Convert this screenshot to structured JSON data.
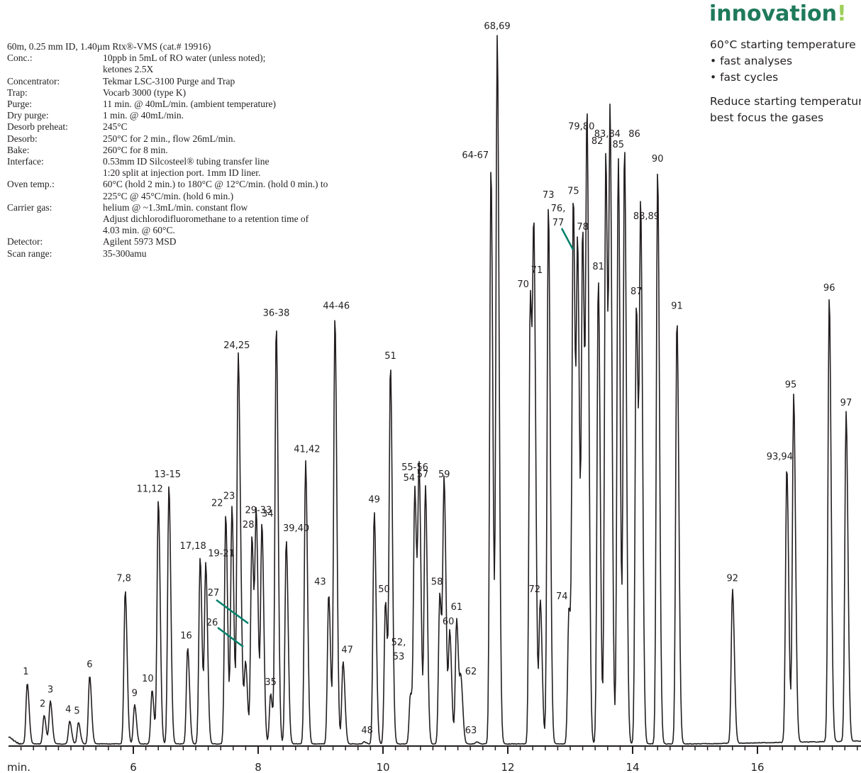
{
  "conditions": [
    {
      "key": "60m, 0.25 mm ID, 1.40µm Rtx®-VMS (cat.# 19916)",
      "value": ""
    },
    {
      "key": "Conc.:",
      "value": "10ppb in 5mL of RO water (unless noted);"
    },
    {
      "key": "",
      "value": "ketones 2.5X"
    },
    {
      "key": "Concentrator:",
      "value": "Tekmar LSC-3100 Purge and Trap"
    },
    {
      "key": "Trap:",
      "value": "Vocarb 3000 (type K)"
    },
    {
      "key": "Purge:",
      "value": "11 min. @ 40mL/min. (ambient temperature)"
    },
    {
      "key": "Dry purge:",
      "value": "1 min. @ 40mL/min."
    },
    {
      "key": "Desorb preheat:",
      "value": "245°C"
    },
    {
      "key": "Desorb:",
      "value": "250°C for 2 min., flow 26mL/min."
    },
    {
      "key": "Bake:",
      "value": "260°C for 8 min."
    },
    {
      "key": "Interface:",
      "value": "0.53mm ID Silcosteel® tubing transfer line"
    },
    {
      "key": "",
      "value": "1:20 split at injection port. 1mm ID liner."
    },
    {
      "key": "Oven temp.:",
      "value": "60°C (hold 2 min.) to 180°C @ 12°C/min. (hold 0 min.) to"
    },
    {
      "key": "",
      "value": "225°C @ 45°C/min. (hold 6 min.)"
    },
    {
      "key": "Carrier gas:",
      "value": "helium @ ~1.3mL/min. constant flow"
    },
    {
      "key": "",
      "value": "Adjust dichlorodifluoromethane to a retention time of"
    },
    {
      "key": "",
      "value": "4.03 min. @ 60°C."
    },
    {
      "key": "Detector:",
      "value": "Agilent 5973 MSD"
    },
    {
      "key": "Scan range:",
      "value": "35-300amu"
    }
  ],
  "innovation": {
    "title": "innovation",
    "bang": "!",
    "lines": [
      "60°C starting temperature",
      "• fast analyses",
      "• fast cycles",
      "",
      "Reduce starting temperature to",
      "best focus the gases"
    ]
  },
  "colors": {
    "trace": "#231f20",
    "accent": "#1e7a5a",
    "bang": "#9ecf5a",
    "pointer": "#00806a"
  },
  "chart_data": {
    "type": "line",
    "xlabel": "min.",
    "x_ticks": [
      6,
      8,
      10,
      12,
      14,
      16
    ],
    "xlim": [
      4.0,
      17.7
    ],
    "ylim": [
      0,
      100
    ],
    "peaks": [
      {
        "label": "1",
        "x": 4.3,
        "y": 8.5
      },
      {
        "label": "2",
        "x": 4.57,
        "y": 4.0
      },
      {
        "label": "3",
        "x": 4.67,
        "y": 6.0
      },
      {
        "label": "4",
        "x": 4.98,
        "y": 3.2
      },
      {
        "label": "5",
        "x": 5.12,
        "y": 3.0
      },
      {
        "label": "6",
        "x": 5.3,
        "y": 9.5
      },
      {
        "label": "7,8",
        "x": 5.87,
        "y": 21.5
      },
      {
        "label": "9",
        "x": 6.02,
        "y": 5.5
      },
      {
        "label": "10",
        "x": 6.3,
        "y": 7.5
      },
      {
        "label": "11,12",
        "x": 6.4,
        "y": 34.0
      },
      {
        "label": "13-15",
        "x": 6.57,
        "y": 36.0
      },
      {
        "label": "16",
        "x": 6.87,
        "y": 13.5
      },
      {
        "label": "17,18",
        "x": 7.07,
        "y": 26.0
      },
      {
        "label": "19-21",
        "x": 7.16,
        "y": 25.0
      },
      {
        "label": "22",
        "x": 7.48,
        "y": 32.0
      },
      {
        "label": "23",
        "x": 7.58,
        "y": 33.0
      },
      {
        "label": "24,25",
        "x": 7.68,
        "y": 54.0
      },
      {
        "label": "26",
        "x": 7.73,
        "y": 9.0
      },
      {
        "label": "27",
        "x": 7.8,
        "y": 11.0
      },
      {
        "label": "28",
        "x": 7.9,
        "y": 29.0
      },
      {
        "label": "29-33",
        "x": 7.97,
        "y": 31.0
      },
      {
        "label": "34",
        "x": 8.06,
        "y": 30.5
      },
      {
        "label": "35",
        "x": 8.2,
        "y": 7.0
      },
      {
        "label": "36-38",
        "x": 8.29,
        "y": 58.5
      },
      {
        "label": "39,40",
        "x": 8.45,
        "y": 28.5
      },
      {
        "label": "41,42",
        "x": 8.76,
        "y": 39.5
      },
      {
        "label": "43",
        "x": 9.13,
        "y": 21.0
      },
      {
        "label": "44-46",
        "x": 9.23,
        "y": 59.5
      },
      {
        "label": "47",
        "x": 9.36,
        "y": 11.5
      },
      {
        "label": "48",
        "x": 9.7,
        "y": 0.3
      },
      {
        "label": "49",
        "x": 9.86,
        "y": 32.5
      },
      {
        "label": "50",
        "x": 10.04,
        "y": 20.0
      },
      {
        "label": "51",
        "x": 10.12,
        "y": 52.5
      },
      {
        "label": "52,53",
        "x": 10.44,
        "y": 7.0
      },
      {
        "label": "54",
        "x": 10.51,
        "y": 35.5
      },
      {
        "label": "55-56",
        "x": 10.58,
        "y": 37.0
      },
      {
        "label": "57",
        "x": 10.68,
        "y": 36.0
      },
      {
        "label": "58",
        "x": 10.91,
        "y": 21.0
      },
      {
        "label": "59",
        "x": 10.98,
        "y": 36.0
      },
      {
        "label": "60",
        "x": 11.07,
        "y": 15.5
      },
      {
        "label": "61",
        "x": 11.18,
        "y": 17.5
      },
      {
        "label": "62",
        "x": 11.25,
        "y": 8.5
      },
      {
        "label": "63",
        "x": 11.5,
        "y": 0.3
      },
      {
        "label": "64-67",
        "x": 11.73,
        "y": 80.5
      },
      {
        "label": "68,69",
        "x": 11.83,
        "y": 98.5
      },
      {
        "label": "70",
        "x": 12.36,
        "y": 62.5
      },
      {
        "label": "71",
        "x": 12.42,
        "y": 64.5
      },
      {
        "label": "72",
        "x": 12.52,
        "y": 20.0
      },
      {
        "label": "73",
        "x": 12.65,
        "y": 75.0
      },
      {
        "label": "74",
        "x": 12.98,
        "y": 19.0
      },
      {
        "label": "75",
        "x": 13.05,
        "y": 75.5
      },
      {
        "label": "76,77",
        "x": 13.12,
        "y": 66.0
      },
      {
        "label": "78",
        "x": 13.2,
        "y": 70.5
      },
      {
        "label": "79,80",
        "x": 13.27,
        "y": 84.5
      },
      {
        "label": "81",
        "x": 13.45,
        "y": 65.0
      },
      {
        "label": "82",
        "x": 13.57,
        "y": 82.5
      },
      {
        "label": "83,84",
        "x": 13.64,
        "y": 83.5
      },
      {
        "label": "85",
        "x": 13.77,
        "y": 82.0
      },
      {
        "label": "86",
        "x": 13.87,
        "y": 83.5
      },
      {
        "label": "87",
        "x": 14.06,
        "y": 61.5
      },
      {
        "label": "88,89",
        "x": 14.13,
        "y": 72.0
      },
      {
        "label": "90",
        "x": 14.4,
        "y": 80.0
      },
      {
        "label": "91",
        "x": 14.71,
        "y": 59.5
      },
      {
        "label": "92",
        "x": 15.6,
        "y": 21.5
      },
      {
        "label": "93,94",
        "x": 16.47,
        "y": 38.5
      },
      {
        "label": "95",
        "x": 16.58,
        "y": 48.5
      },
      {
        "label": "96",
        "x": 17.15,
        "y": 62.0
      },
      {
        "label": "97",
        "x": 17.42,
        "y": 46.0
      }
    ]
  }
}
